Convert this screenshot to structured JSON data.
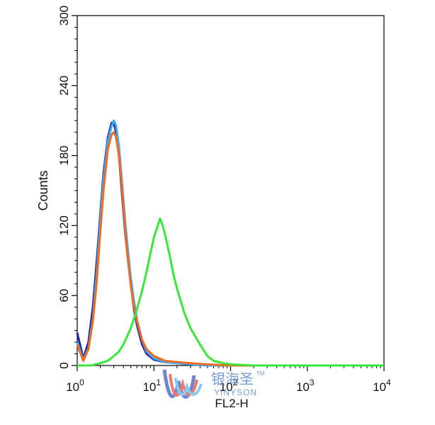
{
  "chart_data": {
    "type": "line",
    "title": "",
    "xlabel": "FL2-H",
    "ylabel": "Counts",
    "xscale": "log",
    "xlim": [
      1,
      10000
    ],
    "ylim": [
      0,
      300
    ],
    "x_ticks": [
      {
        "value": 1,
        "base": "10",
        "exp": "0"
      },
      {
        "value": 10,
        "base": "10",
        "exp": "1"
      },
      {
        "value": 100,
        "base": "10",
        "exp": "2"
      },
      {
        "value": 1000,
        "base": "10",
        "exp": "3"
      },
      {
        "value": 10000,
        "base": "10",
        "exp": "4"
      }
    ],
    "y_ticks": [
      "0",
      "60",
      "120",
      "180",
      "240",
      "300"
    ],
    "grid": false,
    "series": [
      {
        "color": "#1f2a9c",
        "x": [
          1.0,
          1.2,
          1.4,
          1.6,
          1.8,
          2.0,
          2.2,
          2.5,
          2.8,
          3.0,
          3.2,
          3.5,
          3.8,
          4.2,
          4.6,
          5.0,
          5.5,
          6.0,
          7.0,
          8.0,
          10,
          14,
          20,
          30,
          50,
          100,
          1000,
          10000
        ],
        "y": [
          28,
          6,
          20,
          50,
          90,
          130,
          165,
          195,
          208,
          208,
          200,
          180,
          150,
          115,
          90,
          70,
          48,
          35,
          18,
          10,
          5,
          3,
          2,
          1,
          0,
          0,
          0,
          0
        ]
      },
      {
        "color": "#3fa9f5",
        "x": [
          1.0,
          1.2,
          1.4,
          1.6,
          1.8,
          2.0,
          2.2,
          2.5,
          2.8,
          3.0,
          3.2,
          3.5,
          3.8,
          4.2,
          4.6,
          5.0,
          5.5,
          6.0,
          7.0,
          8.0,
          10,
          14,
          20,
          30,
          50,
          100,
          1000,
          10000
        ],
        "y": [
          20,
          5,
          15,
          40,
          80,
          125,
          160,
          192,
          205,
          210,
          206,
          188,
          160,
          125,
          98,
          75,
          55,
          40,
          22,
          12,
          6,
          3,
          2,
          1,
          0,
          0,
          0,
          0
        ]
      },
      {
        "color": "#f26b21",
        "x": [
          1.0,
          1.2,
          1.4,
          1.6,
          1.8,
          2.0,
          2.2,
          2.5,
          2.8,
          3.0,
          3.2,
          3.5,
          3.8,
          4.2,
          4.6,
          5.0,
          5.5,
          6.0,
          7.0,
          8.0,
          10,
          14,
          20,
          30,
          50,
          100,
          1000,
          10000
        ],
        "y": [
          18,
          4,
          14,
          38,
          72,
          115,
          150,
          185,
          198,
          200,
          196,
          180,
          155,
          118,
          90,
          68,
          50,
          38,
          22,
          14,
          8,
          4,
          3,
          2,
          1,
          0,
          0,
          0
        ]
      },
      {
        "color": "#39e639",
        "x": [
          1.0,
          1.5,
          2.0,
          2.5,
          3.0,
          3.5,
          4.0,
          5.0,
          6.0,
          7.0,
          8.0,
          9.0,
          10,
          11,
          12,
          13,
          14,
          16,
          18,
          20,
          25,
          30,
          40,
          50,
          60,
          80,
          100,
          200,
          1000,
          10000
        ],
        "y": [
          0,
          0,
          2,
          4,
          8,
          12,
          18,
          32,
          48,
          64,
          80,
          96,
          110,
          118,
          126,
          120,
          112,
          95,
          78,
          66,
          45,
          32,
          18,
          8,
          4,
          2,
          1,
          0,
          0,
          0
        ]
      }
    ]
  },
  "watermark": {
    "brand_cn": "银海圣",
    "brand_en": "YINYSON",
    "tm": "TM",
    "logo_colors": [
      "#3b5fc0",
      "#e84c3d",
      "#5fb6e8"
    ]
  }
}
